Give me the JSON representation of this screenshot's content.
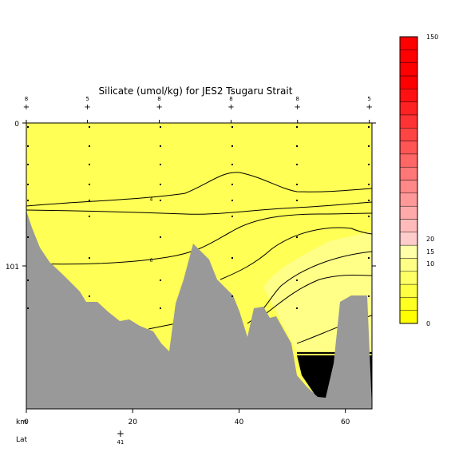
{
  "chart_data": {
    "type": "contour-section",
    "title": "Silicate (umol/kg) for JES2 Tsugaru Strait",
    "xlabel": "km",
    "x_ticks": [
      0,
      20,
      40,
      60
    ],
    "xlim": [
      0,
      65
    ],
    "ylim": [
      0,
      202
    ],
    "y_ticks": [
      0,
      101
    ],
    "lat_label": "Lat",
    "lat_ticks": [
      {
        "km": 18,
        "label": "41"
      }
    ],
    "station_labels": [
      {
        "km": 0,
        "label": "8"
      },
      {
        "km": 11.5,
        "label": "5"
      },
      {
        "km": 25,
        "label": "8"
      },
      {
        "km": 38.5,
        "label": "8"
      },
      {
        "km": 51,
        "label": "8"
      },
      {
        "km": 64.5,
        "label": "5"
      }
    ],
    "colorbar": {
      "ticks": [
        {
          "value": 0,
          "label": "0"
        },
        {
          "value": 10,
          "label": "10"
        },
        {
          "value": 15,
          "label": "15"
        },
        {
          "value": 20,
          "label": "20"
        },
        {
          "value": 150,
          "label": "150"
        }
      ],
      "colors_low_to_high": [
        "#ffff00",
        "#ffff22",
        "#ffff44",
        "#ffff66",
        "#ffff88",
        "#ffffaa",
        "#ffcccc",
        "#ffbbbb",
        "#ffaaaa",
        "#ff9999",
        "#ff8888",
        "#ff7777",
        "#ff6666",
        "#ff5555",
        "#ff4444",
        "#ff3333",
        "#ff2222",
        "#ff1111",
        "#ff0000",
        "#ff0000",
        "#ff0000",
        "#ff0000"
      ]
    },
    "contour_labels": [
      {
        "km": 23.5,
        "depth": 54,
        "label": "4"
      },
      {
        "km": 23.5,
        "depth": 97,
        "label": "6"
      }
    ],
    "colors": {
      "fill_main": "#ffff55",
      "fill_low": "#ffff88",
      "bottom": "#999999",
      "nodata": "#000000"
    }
  }
}
